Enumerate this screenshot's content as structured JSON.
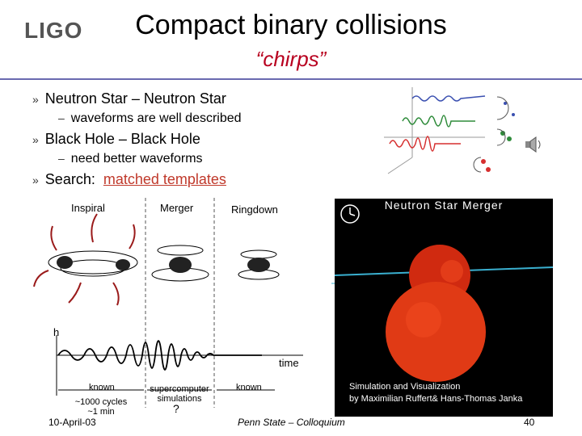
{
  "header": {
    "logo": "LIGO",
    "title": "Compact binary collisions",
    "subtitle": "“chirps”"
  },
  "bullets": [
    {
      "marker": "»",
      "text": "Neutron Star – Neutron Star"
    },
    {
      "marker": "–",
      "text": "waveforms are well described"
    },
    {
      "marker": "»",
      "text": "Black Hole – Black Hole"
    },
    {
      "marker": "–",
      "text": "need better waveforms"
    },
    {
      "marker": "»",
      "prefix": "Search:",
      "link": "matched templates"
    }
  ],
  "diagram": {
    "phases": [
      "Inspiral",
      "Merger",
      "Ringdown"
    ],
    "h_label": "h",
    "time_label": "time",
    "known_left": "known",
    "supercomputer": "supercomputer simulations",
    "known_right": "known",
    "cycles": "~1000 cycles ~1 min",
    "question": "?"
  },
  "simulation": {
    "title": "Neutron Star Merger",
    "credit_line1": "Simulation and Visualization",
    "credit_line2": "by Maximilian Ruffert& Hans-Thomas Janka"
  },
  "footer": {
    "date": "10-April-03",
    "center": "Penn State – Colloquium",
    "page": "40"
  },
  "colors": {
    "accent": "#b8001f",
    "rule": "#6a6ab0"
  }
}
